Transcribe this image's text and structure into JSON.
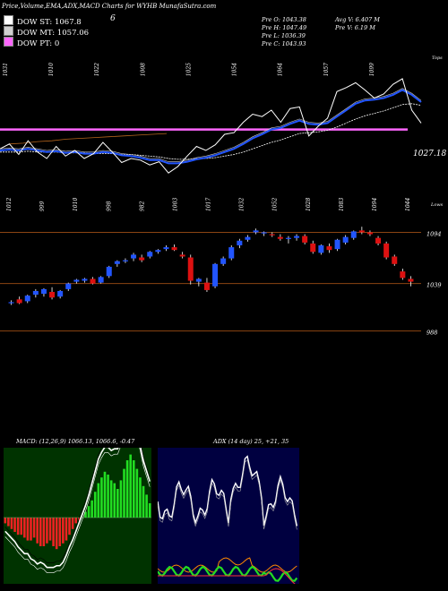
{
  "header": {
    "title": "Price,Volume,EMA,ADX,MACD Charts for WYHB MunafaSutra.com",
    "dma_st_label": "DOW ST: 1067.8",
    "dma_st_color": "#ffffff",
    "dma_mt_label": "DOW MT: 1057.06",
    "dma_mt_color": "#d0d0d0",
    "dma_pt_label": "DOW PT: 0",
    "dma_pt_color": "#ff66ff",
    "stray_value": "6"
  },
  "info": {
    "pre_o": "Pre   O: 1043.38",
    "pre_h": "Pre   H: 1047.49",
    "pre_l": "Pre   L: 1036.39",
    "pre_c": "Pre   C: 1043.93",
    "avg_v": "Avg V: 6.407 M",
    "pre_v": "Pre   V: 6.19 M"
  },
  "chart_data": [
    {
      "type": "line",
      "name": "price-ema-panel",
      "top_labels": [
        "1031",
        "1010",
        "1022",
        "1008",
        "1025",
        "1054",
        "1064",
        "1057",
        "1099"
      ],
      "bottom_labels": [
        "1012",
        "999",
        "1010",
        "998",
        "982",
        "1003",
        "1017",
        "1032",
        "1052",
        "1028",
        "1083",
        "1094",
        "1044"
      ],
      "corner_top": "Tops",
      "corner_bottom": "Lows",
      "last_value_label": "1027.18",
      "ylim": [
        960,
        1110
      ],
      "price": [
        1012,
        1018,
        1005,
        1022,
        1008,
        1000,
        1015,
        1003,
        1010,
        1000,
        1006,
        1020,
        1008,
        995,
        1000,
        998,
        992,
        996,
        982,
        990,
        1003,
        1015,
        1010,
        1017,
        1030,
        1032,
        1045,
        1055,
        1052,
        1060,
        1045,
        1062,
        1064,
        1028,
        1040,
        1050,
        1083,
        1088,
        1094,
        1085,
        1075,
        1080,
        1092,
        1099,
        1060,
        1044
      ],
      "ema_short": [
        1010,
        1011,
        1010,
        1012,
        1010,
        1008,
        1009,
        1007,
        1008,
        1006,
        1006,
        1008,
        1007,
        1004,
        1003,
        1001,
        998,
        998,
        994,
        994,
        996,
        999,
        1001,
        1004,
        1008,
        1012,
        1018,
        1025,
        1030,
        1036,
        1038,
        1043,
        1047,
        1043,
        1042,
        1044,
        1052,
        1060,
        1068,
        1072,
        1073,
        1075,
        1079,
        1085,
        1079,
        1070
      ],
      "ema_long": [
        1008,
        1008,
        1008,
        1009,
        1008,
        1008,
        1008,
        1007,
        1007,
        1007,
        1006,
        1006,
        1006,
        1005,
        1005,
        1004,
        1003,
        1002,
        1000,
        999,
        999,
        1000,
        1000,
        1001,
        1003,
        1005,
        1008,
        1012,
        1016,
        1020,
        1023,
        1027,
        1031,
        1032,
        1033,
        1035,
        1039,
        1044,
        1049,
        1053,
        1056,
        1059,
        1063,
        1067,
        1068,
        1066
      ],
      "trend_line": [
        1018,
        1019,
        1021,
        1022,
        1024,
        1025,
        1026,
        1027,
        1028,
        1029,
        1030,
        1031
      ],
      "horizontal_level": 1036,
      "horizontal_level_color": "#ff66ff"
    },
    {
      "type": "candlestick",
      "name": "candles-panel",
      "ylim": [
        980,
        1105
      ],
      "grid_levels": [
        1094,
        1039,
        988
      ],
      "grid_labels": [
        "1094",
        "1039",
        "988"
      ],
      "candles": [
        [
          1018,
          1021,
          1016,
          1019
        ],
        [
          1022,
          1025,
          1017,
          1018
        ],
        [
          1020,
          1027,
          1018,
          1026
        ],
        [
          1027,
          1033,
          1024,
          1031
        ],
        [
          1028,
          1034,
          1025,
          1033
        ],
        [
          1030,
          1035,
          1022,
          1024
        ],
        [
          1025,
          1032,
          1023,
          1031
        ],
        [
          1033,
          1040,
          1031,
          1039
        ],
        [
          1041,
          1044,
          1039,
          1043
        ],
        [
          1042,
          1045,
          1040,
          1044
        ],
        [
          1044,
          1046,
          1038,
          1039
        ],
        [
          1040,
          1047,
          1039,
          1046
        ],
        [
          1047,
          1058,
          1045,
          1057
        ],
        [
          1060,
          1064,
          1057,
          1063
        ],
        [
          1063,
          1066,
          1061,
          1064
        ],
        [
          1066,
          1072,
          1063,
          1070
        ],
        [
          1067,
          1070,
          1062,
          1064
        ],
        [
          1068,
          1074,
          1066,
          1073
        ],
        [
          1073,
          1076,
          1071,
          1075
        ],
        [
          1076,
          1080,
          1074,
          1078
        ],
        [
          1078,
          1081,
          1074,
          1075
        ],
        [
          1070,
          1073,
          1066,
          1068
        ],
        [
          1067,
          1070,
          1038,
          1042
        ],
        [
          1041,
          1045,
          1036,
          1044
        ],
        [
          1040,
          1045,
          1030,
          1032
        ],
        [
          1036,
          1061,
          1034,
          1060
        ],
        [
          1060,
          1068,
          1058,
          1066
        ],
        [
          1066,
          1080,
          1064,
          1078
        ],
        [
          1080,
          1087,
          1077,
          1085
        ],
        [
          1086,
          1091,
          1084,
          1089
        ],
        [
          1094,
          1098,
          1092,
          1096
        ],
        [
          1093,
          1095,
          1090,
          1094
        ],
        [
          1092,
          1094,
          1089,
          1091
        ],
        [
          1089,
          1092,
          1085,
          1087
        ],
        [
          1087,
          1090,
          1082,
          1088
        ],
        [
          1088,
          1092,
          1085,
          1090
        ],
        [
          1090,
          1092,
          1081,
          1083
        ],
        [
          1082,
          1085,
          1071,
          1073
        ],
        [
          1072,
          1081,
          1070,
          1080
        ],
        [
          1079,
          1082,
          1072,
          1075
        ],
        [
          1076,
          1087,
          1074,
          1086
        ],
        [
          1083,
          1091,
          1081,
          1089
        ],
        [
          1088,
          1096,
          1086,
          1095
        ],
        [
          1096,
          1100,
          1092,
          1094
        ],
        [
          1094,
          1096,
          1090,
          1092
        ],
        [
          1088,
          1090,
          1080,
          1082
        ],
        [
          1082,
          1084,
          1065,
          1067
        ],
        [
          1068,
          1070,
          1058,
          1060
        ],
        [
          1052,
          1055,
          1043,
          1045
        ],
        [
          1044,
          1047,
          1036,
          1041
        ]
      ]
    },
    {
      "type": "bar",
      "name": "macd-panel",
      "title": "MACD: (12,26,9) 1066.13, 1066.6, -0.47",
      "histogram": [
        -2,
        -3,
        -4,
        -5,
        -6,
        -6,
        -7,
        -8,
        -8,
        -7,
        -9,
        -10,
        -10,
        -9,
        -8,
        -10,
        -11,
        -10,
        -9,
        -8,
        -6,
        -4,
        -2,
        -1,
        0,
        2,
        4,
        6,
        9,
        12,
        14,
        16,
        15,
        13,
        12,
        10,
        13,
        17,
        20,
        22,
        20,
        17,
        14,
        11,
        8,
        5
      ]
    },
    {
      "type": "line",
      "name": "adx-panel",
      "title": "ADX  (14 day) 25, +21, 35"
    }
  ]
}
